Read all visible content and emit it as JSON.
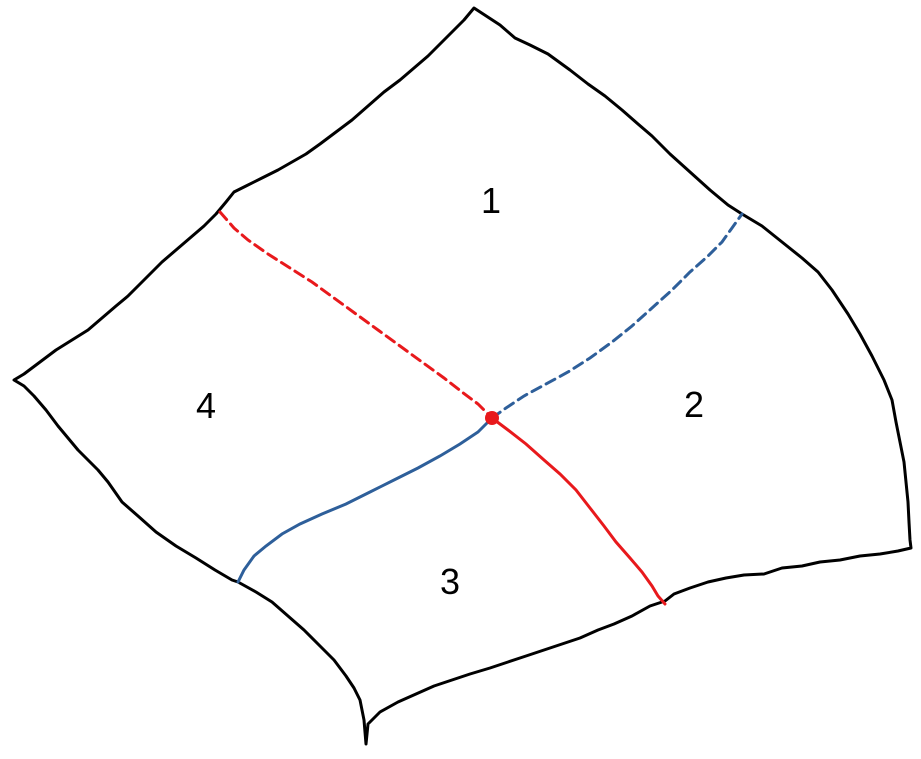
{
  "regions": [
    {
      "id": "1",
      "label": "1"
    },
    {
      "id": "2",
      "label": "2"
    },
    {
      "id": "3",
      "label": "3"
    },
    {
      "id": "4",
      "label": "4"
    }
  ],
  "colors": {
    "outline": "#000000",
    "red_line": "#e8191c",
    "blue_line": "#2e5f9a",
    "vertex": "#e8191c"
  },
  "line_styles": {
    "red_upper": "dashed",
    "red_lower": "solid",
    "blue_upper": "dashed",
    "blue_lower": "solid"
  }
}
